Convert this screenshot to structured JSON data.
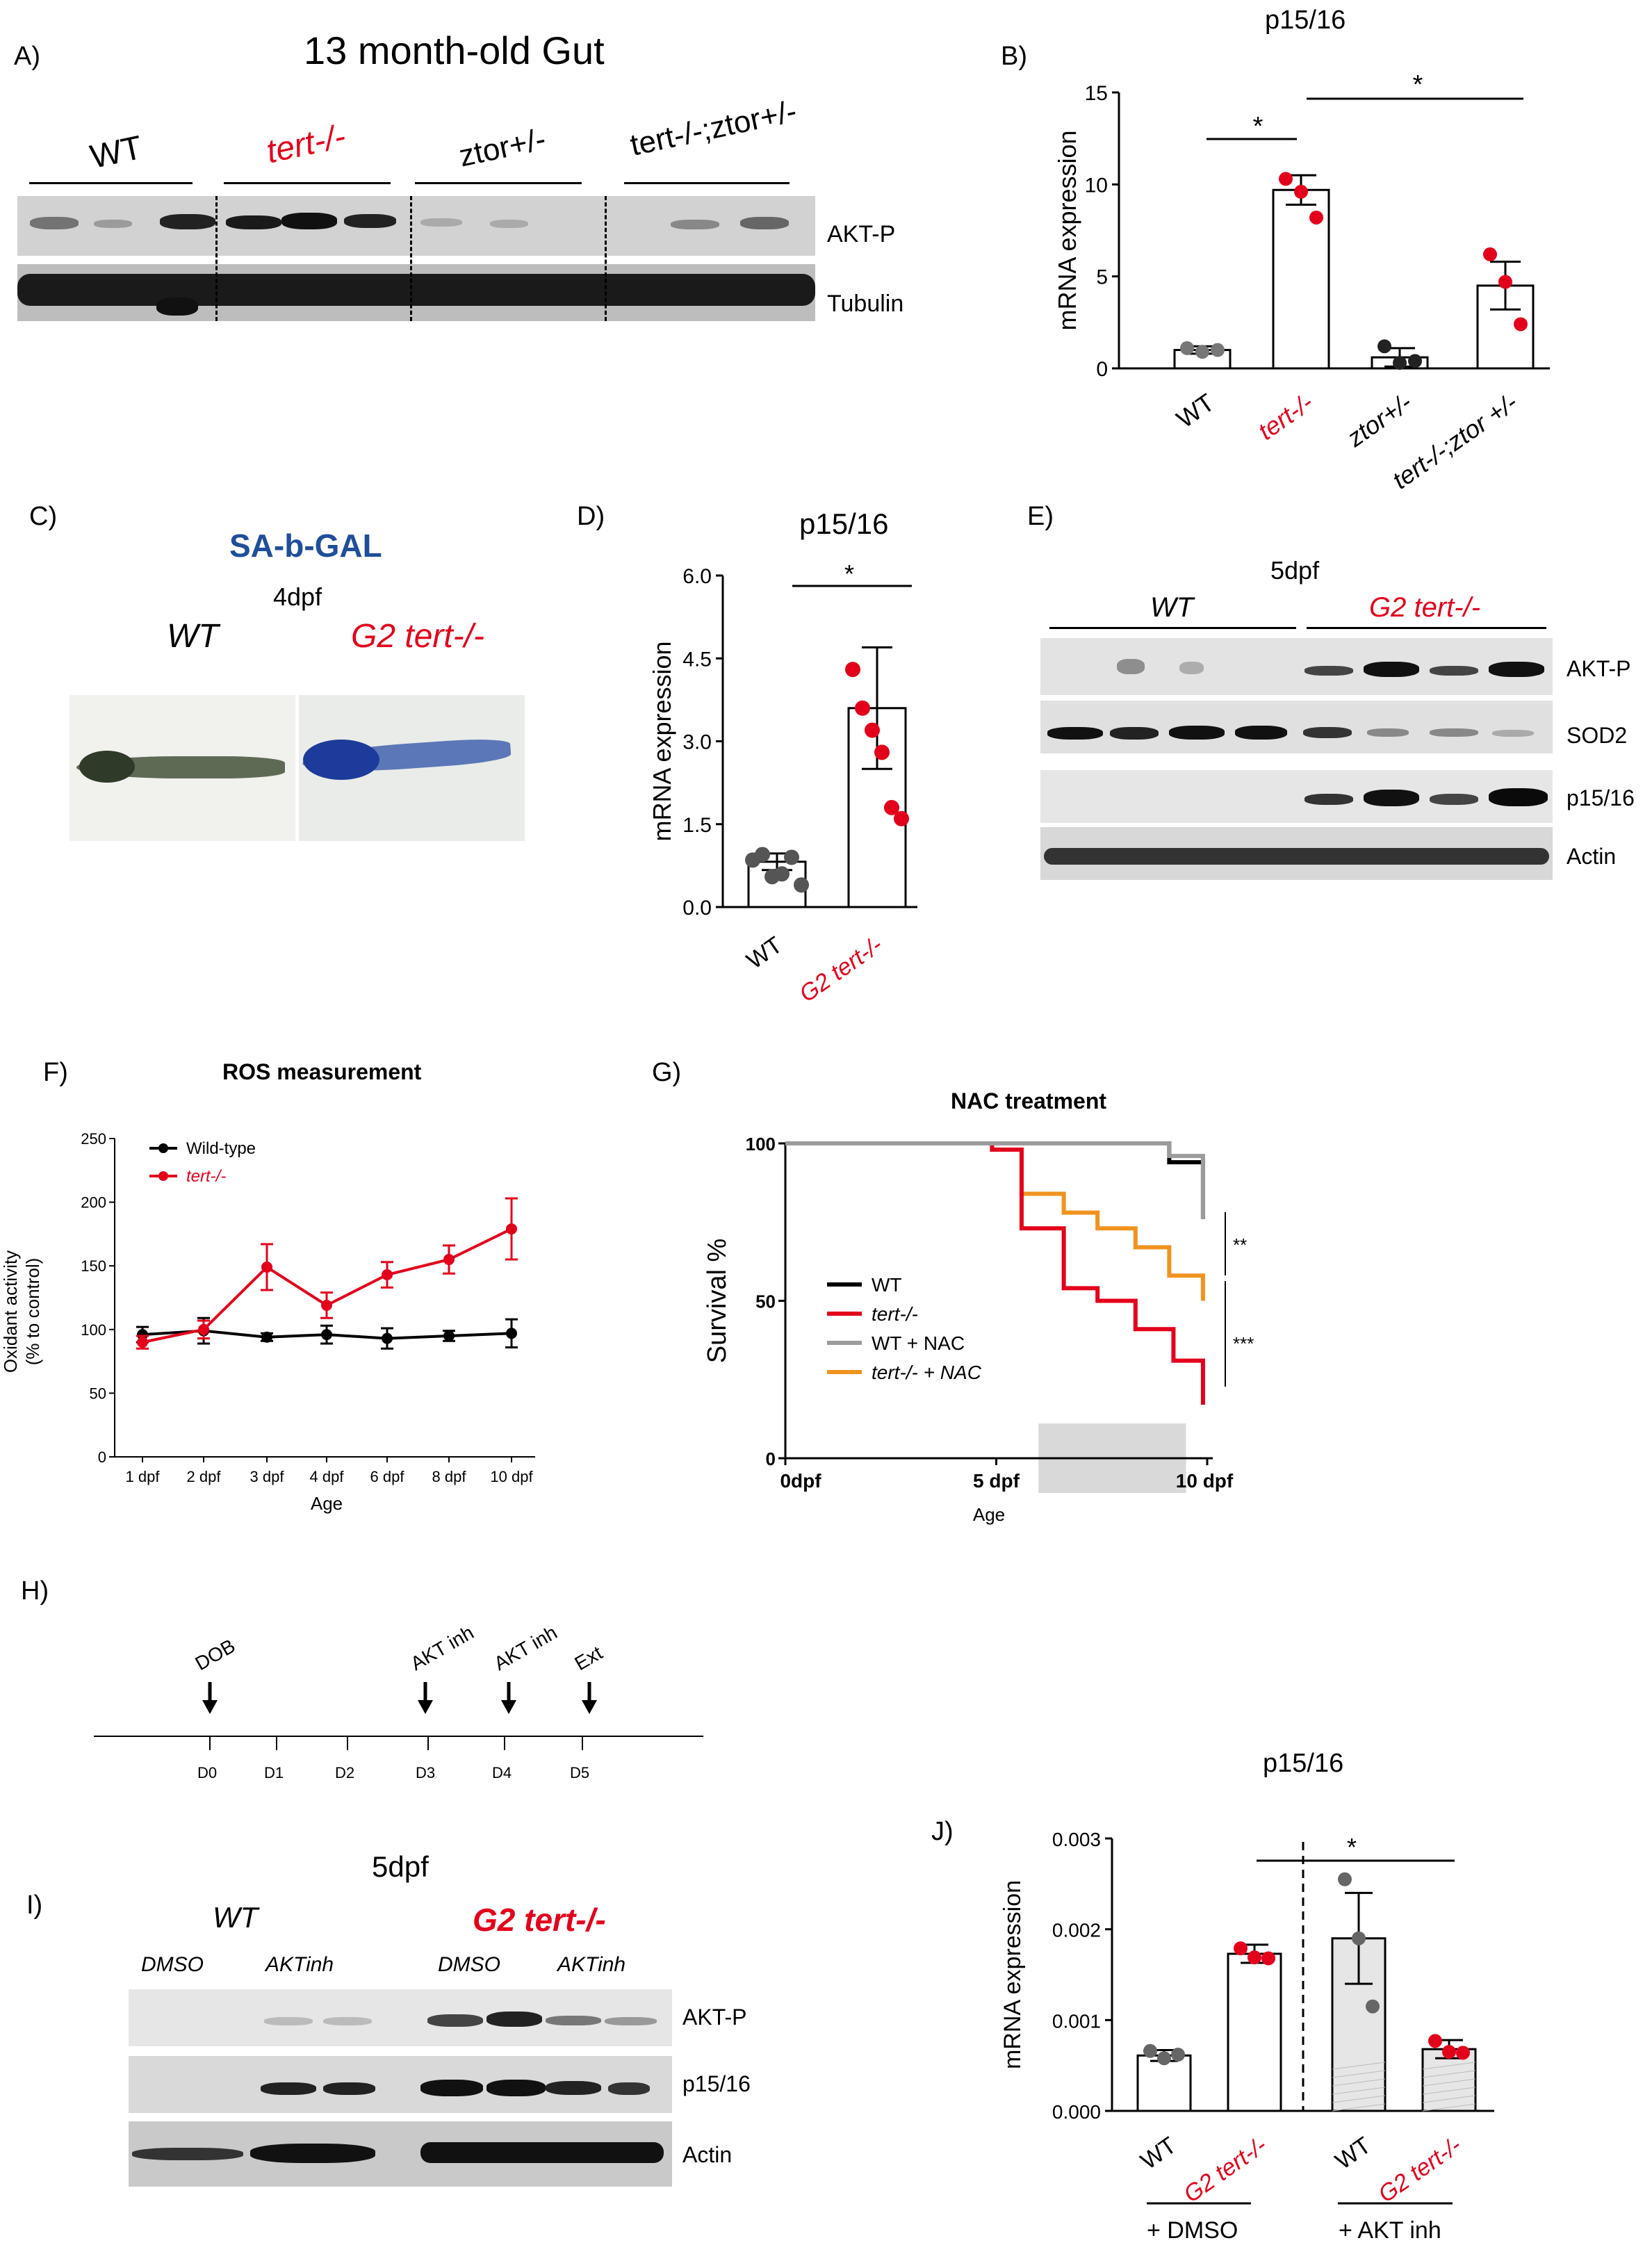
{
  "panels": {
    "A": {
      "label": "A)",
      "title": "13 month-old Gut",
      "groups": [
        "WT",
        "tert-/-",
        "ztor+/-",
        "tert-/-;ztor+/-"
      ],
      "rows": [
        "AKT-P",
        "Tubulin"
      ]
    },
    "B": {
      "label": "B)",
      "title": "p15/16",
      "sig": [
        "*",
        "*"
      ]
    },
    "C": {
      "label": "C)",
      "title": "SA-b-GAL",
      "subtitle": "4dpf",
      "groups": [
        "WT",
        "G2 tert-/-"
      ]
    },
    "D": {
      "label": "D)",
      "title": "p15/16",
      "sig": "*"
    },
    "E": {
      "label": "E)",
      "title": "5dpf",
      "groups": [
        "WT",
        "G2 tert-/-"
      ],
      "rows": [
        "AKT-P",
        "SOD2",
        "p15/16",
        "Actin"
      ]
    },
    "F": {
      "label": "F)",
      "title": "ROS measurement"
    },
    "G": {
      "label": "G)",
      "title": "NAC treatment",
      "sig": [
        "**",
        "***"
      ]
    },
    "H": {
      "label": "H)",
      "events": [
        "DOB",
        "AKT inh",
        "AKT inh",
        "Ext"
      ],
      "days": [
        "D0",
        "D1",
        "D2",
        "D3",
        "D4",
        "D5"
      ]
    },
    "I": {
      "label": "I)",
      "title": "5dpf",
      "groups": [
        "WT",
        "G2 tert-/-"
      ],
      "treatments": [
        "DMSO",
        "AKTinh",
        "DMSO",
        "AKTinh"
      ],
      "rows": [
        "AKT-P",
        "p15/16",
        "Actin"
      ]
    },
    "J": {
      "label": "J)",
      "title": "p15/16",
      "sig": "*",
      "brackets": [
        "+ DMSO",
        "+ AKT inh"
      ]
    }
  },
  "colors": {
    "red": "#e3001b",
    "orange": "#f0931e",
    "grey": "#9c9c9c",
    "black": "#000000",
    "blue": "#1f4e9a"
  },
  "chart_data": [
    {
      "id": "B",
      "type": "bar",
      "title": "p15/16",
      "ylabel": "mRNA expression",
      "ylim": [
        0,
        15
      ],
      "yticks": [
        0,
        5,
        10,
        15
      ],
      "categories": [
        "WT",
        "tert-/-",
        "ztor+/-",
        "tert-/-;ztor +/-"
      ],
      "values": [
        1.0,
        9.7,
        0.6,
        4.5
      ],
      "errors": [
        0.2,
        0.8,
        0.5,
        1.3
      ],
      "points": [
        [
          1.1,
          0.9,
          1.0
        ],
        [
          10.3,
          9.6,
          8.2
        ],
        [
          1.2,
          0.3,
          0.4
        ],
        [
          6.2,
          4.7,
          2.4
        ]
      ]
    },
    {
      "id": "D",
      "type": "bar",
      "title": "p15/16",
      "ylabel": "mRNA expression",
      "ylim": [
        0,
        6
      ],
      "yticks": [
        "0.0",
        "1.5",
        "3.0",
        "4.5",
        "6.0"
      ],
      "categories": [
        "WT",
        "G2 tert-/-"
      ],
      "values": [
        0.82,
        3.6
      ],
      "errors": [
        0.15,
        1.1
      ],
      "points": [
        [
          0.85,
          0.95,
          0.55,
          0.6,
          0.9,
          0.4
        ],
        [
          4.3,
          3.6,
          3.2,
          2.8,
          1.8,
          1.6
        ]
      ]
    },
    {
      "id": "F",
      "type": "line",
      "title": "ROS measurement",
      "xlabel": "Age",
      "ylabel": "Oxidant activity (% to control)",
      "ylim": [
        0,
        250
      ],
      "yticks": [
        0,
        50,
        100,
        150,
        200,
        250
      ],
      "categories": [
        "1 dpf",
        "2 dpf",
        "3 dpf",
        "4 dpf",
        "6 dpf",
        "8 dpf",
        "10 dpf"
      ],
      "series": [
        {
          "name": "Wild-type",
          "values": [
            96,
            99,
            94,
            96,
            93,
            95,
            97
          ],
          "errors": [
            6,
            10,
            3,
            7,
            8,
            4,
            11
          ]
        },
        {
          "name": "tert-/-",
          "values": [
            90,
            100,
            149,
            119,
            143,
            155,
            179
          ],
          "errors": [
            5,
            7,
            18,
            10,
            10,
            11,
            24
          ]
        }
      ]
    },
    {
      "id": "G",
      "type": "line",
      "title": "NAC treatment",
      "xlabel": "Age",
      "ylabel": "Survival %",
      "ylim": [
        0,
        100
      ],
      "yticks": [
        0,
        50,
        100
      ],
      "xticks": [
        "0dpf",
        "5 dpf",
        "10 dpf"
      ],
      "series": [
        {
          "name": "WT",
          "x": [
            0,
            9.1,
            9.1,
            9.9,
            9.9
          ],
          "y": [
            100,
            100,
            94,
            94,
            76
          ]
        },
        {
          "name": "tert-/-",
          "x": [
            0,
            4.9,
            4.9,
            5.6,
            5.6,
            6.6,
            6.6,
            7.4,
            7.4,
            8.3,
            8.3,
            9.2,
            9.2,
            9.9,
            9.9
          ],
          "y": [
            100,
            100,
            98,
            98,
            73,
            73,
            54,
            54,
            50,
            50,
            41,
            41,
            31,
            31,
            17
          ]
        },
        {
          "name": "WT + NAC",
          "x": [
            0,
            9.1,
            9.1,
            9.9,
            9.9
          ],
          "y": [
            100,
            100,
            96,
            96,
            76
          ]
        },
        {
          "name": "tert-/- + NAC",
          "x": [
            0,
            4.9,
            4.9,
            5.6,
            5.6,
            6.6,
            6.6,
            7.4,
            7.4,
            8.3,
            8.3,
            9.1,
            9.1,
            9.9,
            9.9
          ],
          "y": [
            100,
            100,
            98,
            98,
            84,
            84,
            78,
            78,
            73,
            73,
            67,
            67,
            58,
            58,
            50
          ]
        }
      ],
      "shaded_range": [
        6,
        9.5
      ]
    },
    {
      "id": "J",
      "type": "bar",
      "title": "p15/16",
      "ylabel": "mRNA expression",
      "ylim": [
        0,
        0.003
      ],
      "yticks": [
        "0.000",
        "0.001",
        "0.002",
        "0.003"
      ],
      "categories": [
        "WT",
        "G2 tert-/-",
        "WT",
        "G2 tert-/-"
      ],
      "values": [
        0.00061,
        0.00173,
        0.0019,
        0.00068
      ],
      "errors": [
        6e-05,
        0.0001,
        0.0005,
        0.0001
      ],
      "points": [
        [
          0.00066,
          0.00058,
          0.00062
        ],
        [
          0.00179,
          0.00169,
          0.00168
        ],
        [
          0.00255,
          0.0019,
          0.00115
        ],
        [
          0.00077,
          0.00065,
          0.00064
        ]
      ]
    }
  ]
}
